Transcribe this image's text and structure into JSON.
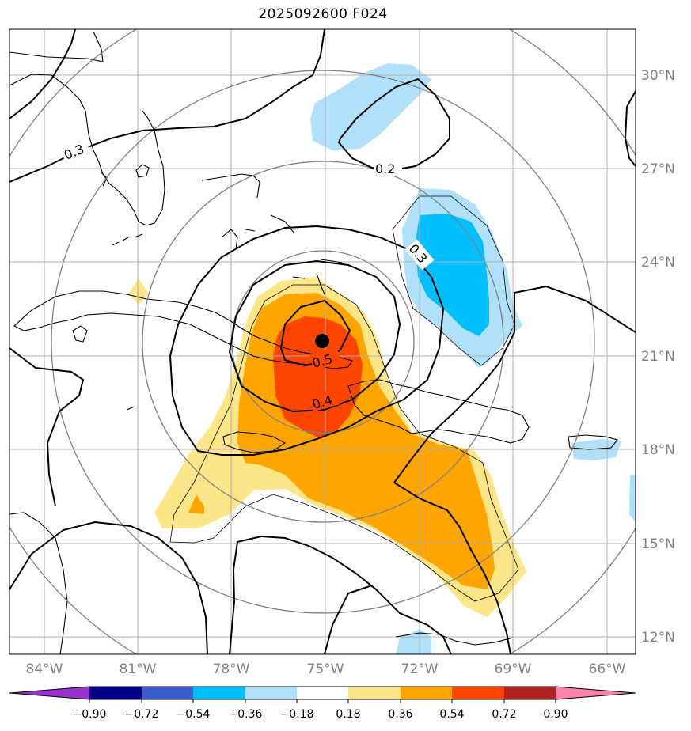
{
  "title": "2025092600 F024",
  "map": {
    "lon_ticks": [
      "84°W",
      "81°W",
      "78°W",
      "75°W",
      "72°W",
      "69°W",
      "66°W"
    ],
    "lat_ticks": [
      "30°N",
      "27°N",
      "24°N",
      "21°N",
      "18°N",
      "15°N",
      "12°N"
    ],
    "contour_labels": [
      "0.3",
      "0.2",
      "0.3",
      "0.5",
      "0.4"
    ],
    "storm_center": {
      "lon": -75.0,
      "lat": 21.4
    },
    "colors": {
      "pos_1": "#fde68a",
      "pos_2": "#ffa500",
      "pos_3": "#ff4500",
      "neg_1": "#b0e0fa",
      "neg_2": "#00bfff",
      "range_rings": "#808080",
      "grid": "#b0b0b0"
    }
  },
  "colorbar": {
    "ticks": [
      "−0.90",
      "−0.72",
      "−0.54",
      "−0.36",
      "−0.18",
      "0.18",
      "0.36",
      "0.54",
      "0.72",
      "0.90"
    ],
    "colors": [
      "#9932cc",
      "#00008b",
      "#3a5fcd",
      "#00bfff",
      "#b0e0fa",
      "#ffffff",
      "#fde68a",
      "#ffa500",
      "#ff4500",
      "#b22222",
      "#ff82ab"
    ]
  }
}
